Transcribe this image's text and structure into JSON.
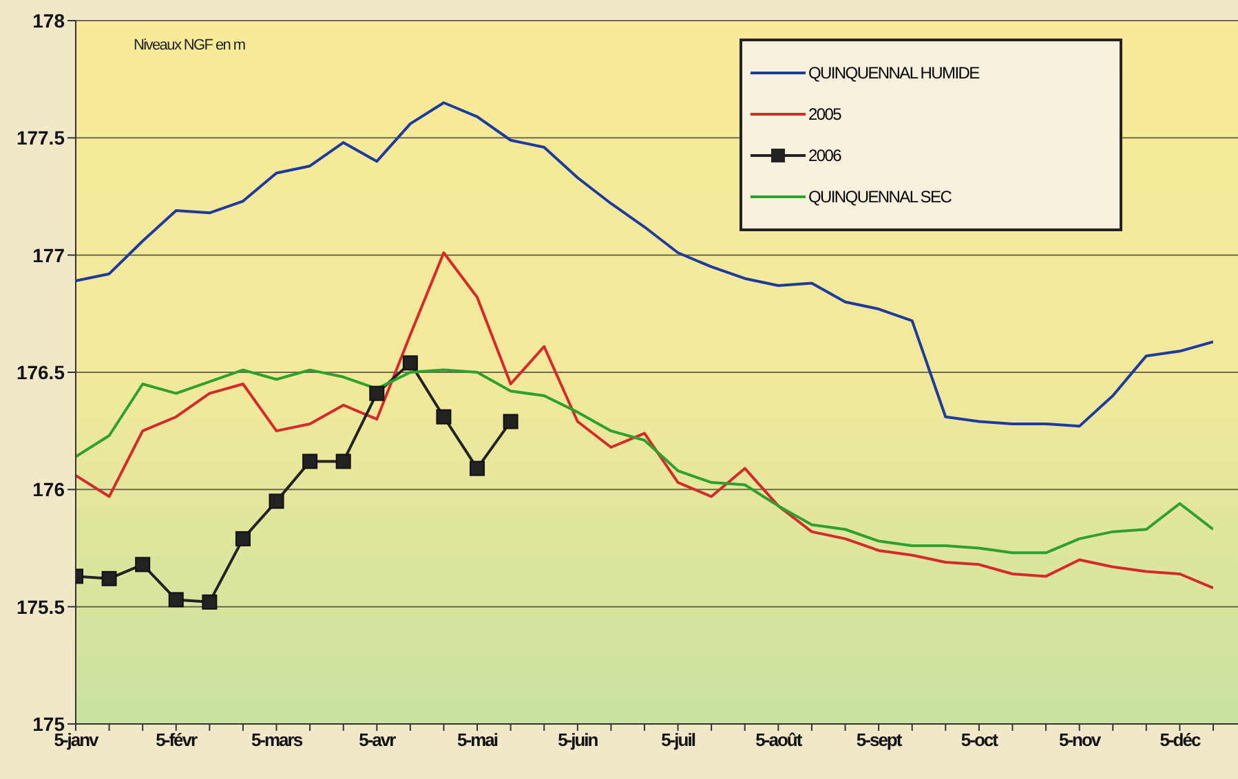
{
  "chart_data": {
    "type": "line",
    "annotations": [
      "Niveaux NGF en m"
    ],
    "categories": [
      "5-janv",
      null,
      null,
      "5-févr",
      null,
      null,
      "5-mars",
      null,
      null,
      "5-avr",
      null,
      null,
      "5-mai",
      null,
      null,
      "5-juin",
      null,
      null,
      "5-juil",
      null,
      null,
      "5-août",
      null,
      null,
      "5-sept",
      null,
      null,
      "5-oct",
      null,
      null,
      "5-nov",
      null,
      null,
      "5-déc",
      null
    ],
    "series": [
      {
        "name": "QUINQUENNAL HUMIDE",
        "color": "#1f3a9e",
        "marker": "none",
        "values": [
          176.89,
          176.92,
          177.06,
          177.19,
          177.18,
          177.23,
          177.35,
          177.38,
          177.48,
          177.4,
          177.56,
          177.65,
          177.59,
          177.49,
          177.46,
          177.33,
          177.22,
          177.12,
          177.01,
          176.95,
          176.9,
          176.87,
          176.88,
          176.8,
          176.77,
          176.72,
          176.31,
          176.29,
          176.28,
          176.28,
          176.27,
          176.4,
          176.57,
          176.59,
          176.63
        ]
      },
      {
        "name": "2005",
        "color": "#d42a2a",
        "marker": "none",
        "values": [
          176.06,
          175.97,
          176.25,
          176.31,
          176.41,
          176.45,
          176.25,
          176.28,
          176.36,
          176.3,
          176.66,
          177.01,
          176.82,
          176.45,
          176.61,
          176.29,
          176.18,
          176.24,
          176.03,
          175.97,
          176.09,
          175.93,
          175.82,
          175.79,
          175.74,
          175.72,
          175.69,
          175.68,
          175.64,
          175.63,
          175.7,
          175.67,
          175.65,
          175.64,
          175.58
        ]
      },
      {
        "name": "2006",
        "color": "#222222",
        "marker": "square",
        "values": [
          175.63,
          175.62,
          175.68,
          175.53,
          175.52,
          175.79,
          175.95,
          176.12,
          176.12,
          176.41,
          176.54,
          176.31,
          176.09,
          176.29,
          null,
          null,
          null,
          null,
          null,
          null,
          null,
          null,
          null,
          null,
          null,
          null,
          null,
          null,
          null,
          null,
          null,
          null,
          null,
          null,
          null
        ]
      },
      {
        "name": "QUINQUENNAL SEC",
        "color": "#2ea02e",
        "marker": "none",
        "values": [
          176.14,
          176.23,
          176.45,
          176.41,
          176.46,
          176.51,
          176.47,
          176.51,
          176.48,
          176.43,
          176.5,
          176.51,
          176.5,
          176.42,
          176.4,
          176.33,
          176.25,
          176.21,
          176.08,
          176.03,
          176.02,
          175.93,
          175.85,
          175.83,
          175.78,
          175.76,
          175.76,
          175.75,
          175.73,
          175.73,
          175.79,
          175.82,
          175.83,
          175.94,
          175.83
        ]
      }
    ],
    "ylim": [
      175,
      178
    ],
    "yticks": [
      175,
      175.5,
      176,
      176.5,
      177,
      177.5,
      178
    ],
    "grid": "y",
    "legend": "top right",
    "line_style": "solid"
  }
}
